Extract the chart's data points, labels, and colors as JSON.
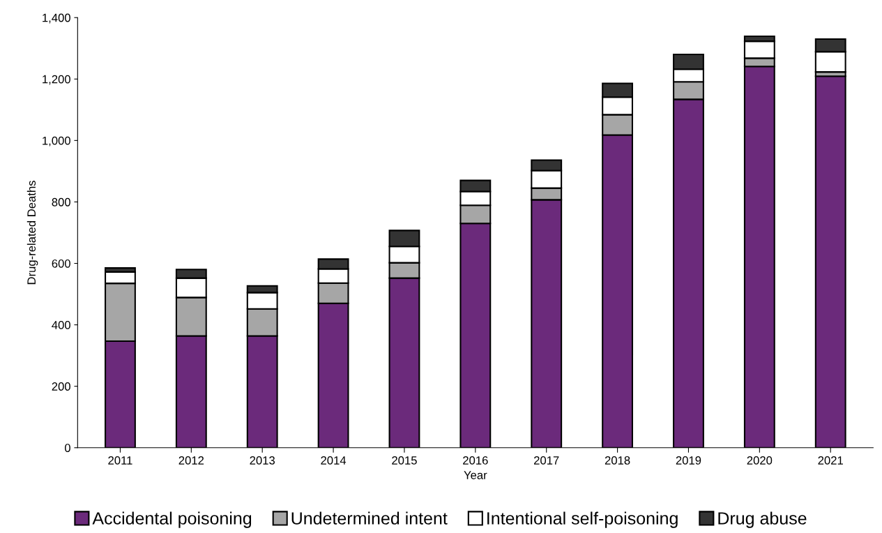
{
  "chart_data": {
    "type": "bar",
    "stacked": true,
    "xlabel": "Year",
    "ylabel": "Drug-related Deaths",
    "categories": [
      "2011",
      "2012",
      "2013",
      "2014",
      "2015",
      "2016",
      "2017",
      "2018",
      "2019",
      "2020",
      "2021"
    ],
    "series": [
      {
        "name": "Accidental poisoning",
        "color": "#6b2a7b",
        "values": [
          347,
          364,
          364,
          470,
          552,
          730,
          807,
          1018,
          1134,
          1241,
          1209
        ]
      },
      {
        "name": "Undetermined intent",
        "color": "#a6a6a6",
        "values": [
          188,
          125,
          88,
          66,
          50,
          59,
          38,
          66,
          57,
          27,
          14
        ]
      },
      {
        "name": "Intentional self-poisoning",
        "color": "#ffffff",
        "values": [
          37,
          63,
          53,
          46,
          53,
          45,
          57,
          57,
          41,
          55,
          66
        ]
      },
      {
        "name": "Drug abuse",
        "color": "#333333",
        "values": [
          13,
          28,
          22,
          32,
          52,
          36,
          34,
          45,
          48,
          16,
          41
        ]
      }
    ],
    "ylim": [
      0,
      1400
    ],
    "yticks": [
      0,
      200,
      400,
      600,
      800,
      {
        "value": 1000,
        "label": "1,000"
      },
      {
        "value": 1200,
        "label": "1,200"
      },
      {
        "value": 1400,
        "label": "1,400"
      }
    ],
    "grid": false,
    "legend": "bottom"
  }
}
